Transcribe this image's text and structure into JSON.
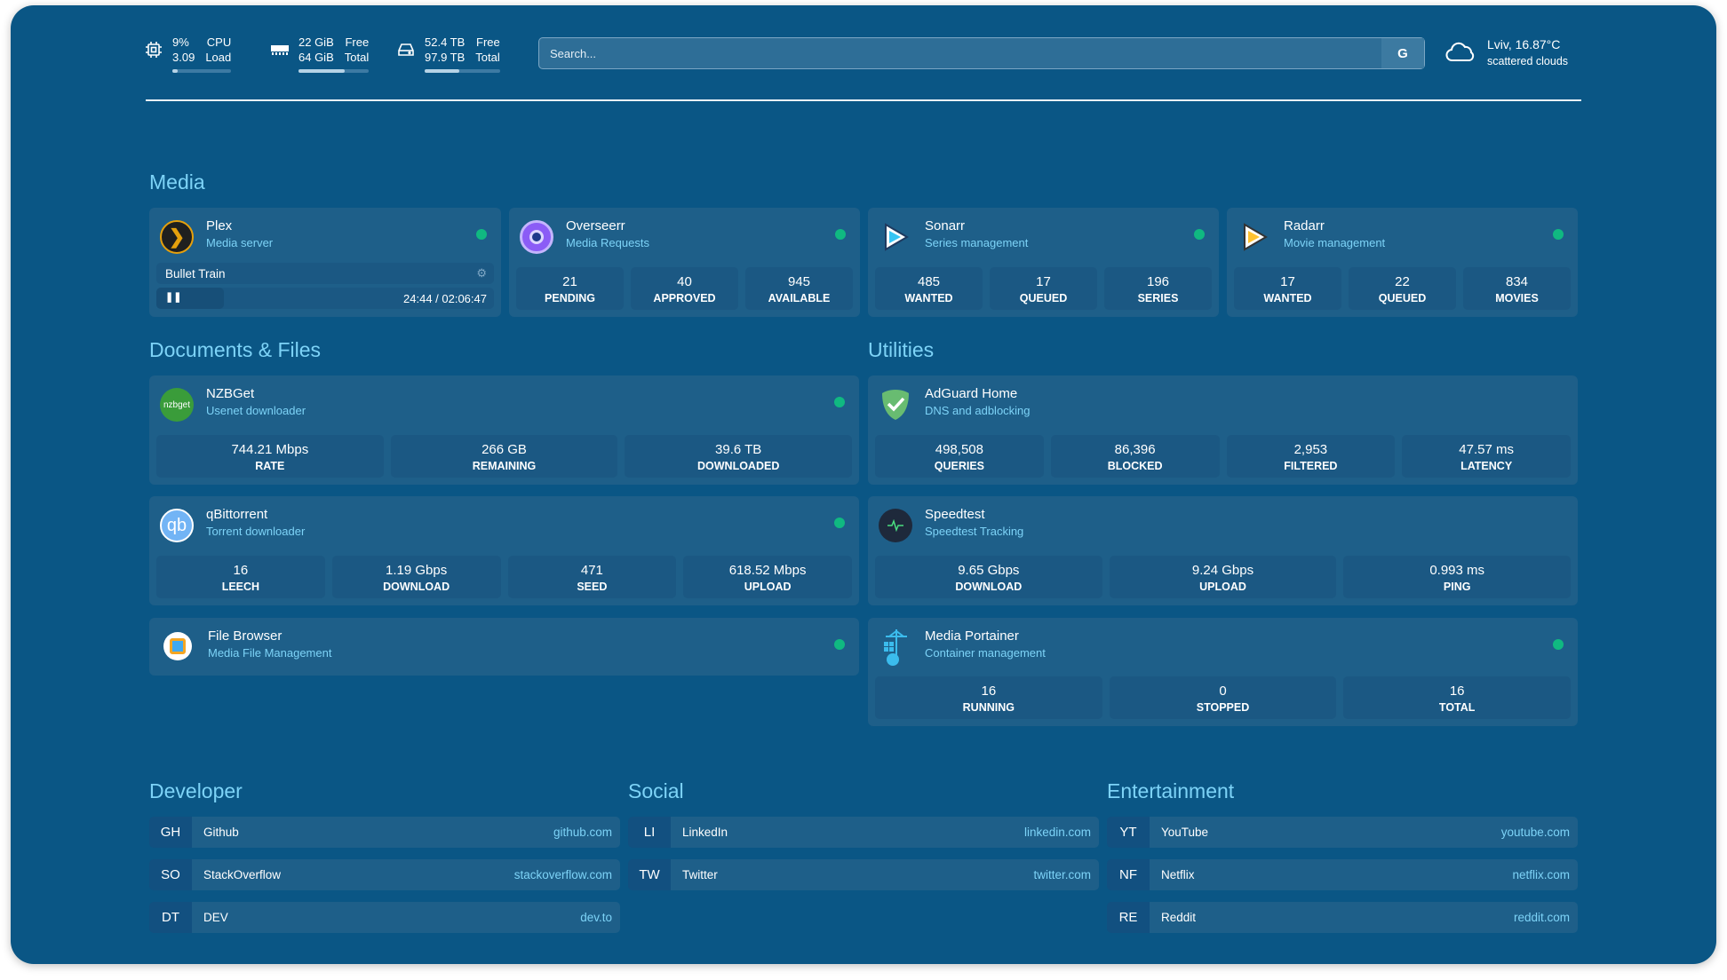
{
  "header": {
    "cpu": {
      "value": "9%",
      "label": "CPU",
      "load": "3.09",
      "load_label": "Load",
      "usage_percent": 9,
      "icon": "cpu-icon"
    },
    "memory": {
      "free": "22 GiB",
      "free_label": "Free",
      "total": "64 GiB",
      "total_label": "Total",
      "used_percent": 66,
      "icon": "memory-icon"
    },
    "disk": {
      "free": "52.4 TB",
      "free_label": "Free",
      "total": "97.9 TB",
      "total_label": "Total",
      "used_percent": 46,
      "icon": "harddrive-icon"
    },
    "search": {
      "placeholder": "Search...",
      "provider_button": "G"
    },
    "weather": {
      "location": "Lviv, 16.87°C",
      "description": "scattered clouds",
      "icon": "cloud-icon"
    }
  },
  "colors": {
    "background": "#0a5685",
    "card": "#1e5f89",
    "accent": "#7dd3f7",
    "status_online": "#10b981"
  },
  "media": {
    "title": "Media",
    "plex": {
      "name": "Plex",
      "desc": "Media server",
      "now_playing": "Bullet Train",
      "time": "24:44 / 02:06:47",
      "progress_percent": 20
    },
    "overseerr": {
      "name": "Overseerr",
      "desc": "Media Requests",
      "stats": [
        {
          "v": "21",
          "l": "PENDING"
        },
        {
          "v": "40",
          "l": "APPROVED"
        },
        {
          "v": "945",
          "l": "AVAILABLE"
        }
      ]
    },
    "sonarr": {
      "name": "Sonarr",
      "desc": "Series management",
      "stats": [
        {
          "v": "485",
          "l": "WANTED"
        },
        {
          "v": "17",
          "l": "QUEUED"
        },
        {
          "v": "196",
          "l": "SERIES"
        }
      ]
    },
    "radarr": {
      "name": "Radarr",
      "desc": "Movie management",
      "stats": [
        {
          "v": "17",
          "l": "WANTED"
        },
        {
          "v": "22",
          "l": "QUEUED"
        },
        {
          "v": "834",
          "l": "MOVIES"
        }
      ]
    }
  },
  "documents": {
    "title": "Documents & Files",
    "nzbget": {
      "name": "NZBGet",
      "desc": "Usenet downloader",
      "logo": "nzbget",
      "stats": [
        {
          "v": "744.21 Mbps",
          "l": "RATE"
        },
        {
          "v": "266 GB",
          "l": "REMAINING"
        },
        {
          "v": "39.6 TB",
          "l": "DOWNLOADED"
        }
      ]
    },
    "qbittorrent": {
      "name": "qBittorrent",
      "desc": "Torrent downloader",
      "logo": "qb",
      "stats": [
        {
          "v": "16",
          "l": "LEECH"
        },
        {
          "v": "1.19 Gbps",
          "l": "DOWNLOAD"
        },
        {
          "v": "471",
          "l": "SEED"
        },
        {
          "v": "618.52 Mbps",
          "l": "UPLOAD"
        }
      ]
    },
    "filebrowser": {
      "name": "File Browser",
      "desc": "Media File Management"
    }
  },
  "utilities": {
    "title": "Utilities",
    "adguard": {
      "name": "AdGuard Home",
      "desc": "DNS and adblocking",
      "stats": [
        {
          "v": "498,508",
          "l": "QUERIES"
        },
        {
          "v": "86,396",
          "l": "BLOCKED"
        },
        {
          "v": "2,953",
          "l": "FILTERED"
        },
        {
          "v": "47.57 ms",
          "l": "LATENCY"
        }
      ]
    },
    "speedtest": {
      "name": "Speedtest",
      "desc": "Speedtest Tracking",
      "stats": [
        {
          "v": "9.65 Gbps",
          "l": "DOWNLOAD"
        },
        {
          "v": "9.24 Gbps",
          "l": "UPLOAD"
        },
        {
          "v": "0.993 ms",
          "l": "PING"
        }
      ]
    },
    "portainer": {
      "name": "Media Portainer",
      "desc": "Container management",
      "stats": [
        {
          "v": "16",
          "l": "RUNNING"
        },
        {
          "v": "0",
          "l": "STOPPED"
        },
        {
          "v": "16",
          "l": "TOTAL"
        }
      ]
    }
  },
  "bookmarks": [
    {
      "title": "Developer",
      "items": [
        {
          "ab": "GH",
          "name": "Github",
          "url": "github.com"
        },
        {
          "ab": "SO",
          "name": "StackOverflow",
          "url": "stackoverflow.com"
        },
        {
          "ab": "DT",
          "name": "DEV",
          "url": "dev.to"
        }
      ]
    },
    {
      "title": "Social",
      "items": [
        {
          "ab": "LI",
          "name": "LinkedIn",
          "url": "linkedin.com"
        },
        {
          "ab": "TW",
          "name": "Twitter",
          "url": "twitter.com"
        }
      ]
    },
    {
      "title": "Entertainment",
      "items": [
        {
          "ab": "YT",
          "name": "YouTube",
          "url": "youtube.com"
        },
        {
          "ab": "NF",
          "name": "Netflix",
          "url": "netflix.com"
        },
        {
          "ab": "RE",
          "name": "Reddit",
          "url": "reddit.com"
        }
      ]
    }
  ]
}
